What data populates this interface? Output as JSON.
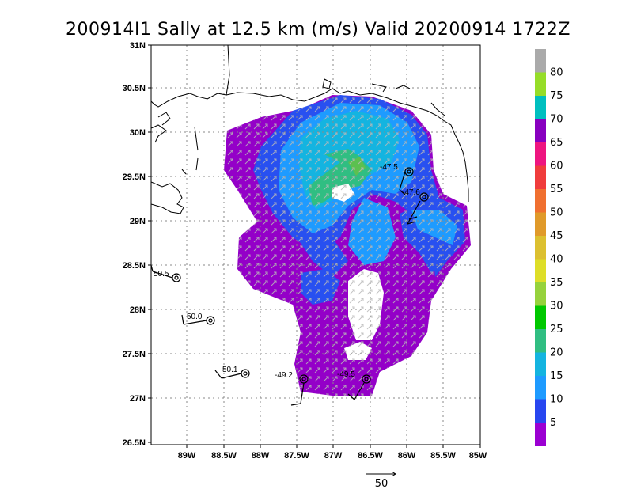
{
  "title": "200914I1 Sally at 12.5 km (m/s) Valid 20200914 1722Z",
  "lat_ticks": [
    "31N",
    "30.5N",
    "30N",
    "29.5N",
    "29N",
    "28.5N",
    "28N",
    "27.5N",
    "27N",
    "26.5N"
  ],
  "lon_ticks": [
    "89W",
    "88.5W",
    "88W",
    "87.5W",
    "87W",
    "86.5W",
    "86W",
    "85.5W",
    "85W"
  ],
  "colorbar": {
    "labels": [
      "80",
      "75",
      "70",
      "65",
      "60",
      "55",
      "50",
      "45",
      "40",
      "35",
      "30",
      "25",
      "20",
      "15",
      "10",
      "5"
    ],
    "colors": [
      "#aaaaaa",
      "#96dd28",
      "#00bfbf",
      "#8800bf",
      "#ee1580",
      "#f03c3c",
      "#f07030",
      "#e09a2a",
      "#dcc030",
      "#dede28",
      "#96d23c",
      "#00c800",
      "#30be82",
      "#14b4e0",
      "#1e9bff",
      "#2846f0",
      "#9b00d2"
    ]
  },
  "stations": [
    {
      "label": "-47.5"
    },
    {
      "label": "-47.6"
    },
    {
      "label": "50.5"
    },
    {
      "label": "50.0"
    },
    {
      "label": "50.1"
    },
    {
      "label": "-49.2"
    },
    {
      "label": "-49.5"
    }
  ],
  "scale_label": "50"
}
